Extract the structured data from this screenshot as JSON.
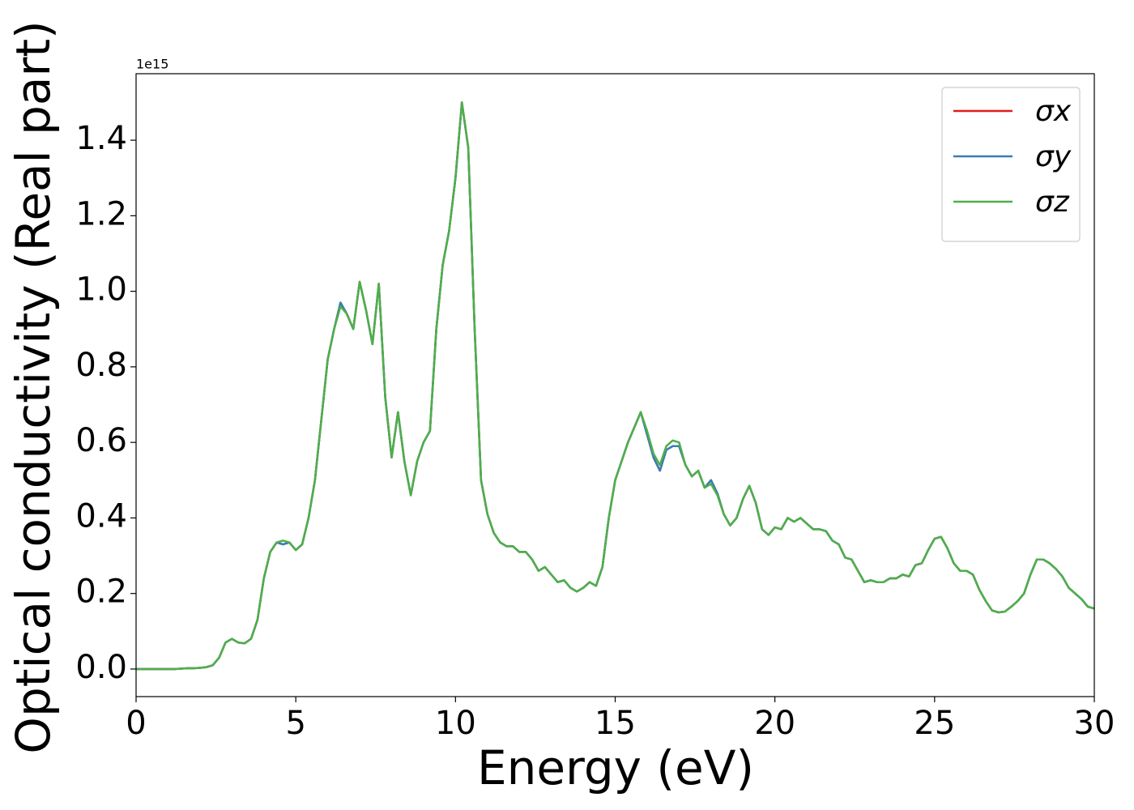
{
  "chart_data": {
    "type": "line",
    "x_label": "Energy (eV)",
    "y_label": "Optical conductivity (Real part)",
    "y_offset_label": "1e15",
    "xlim": [
      0,
      30
    ],
    "xticks": [
      0,
      5,
      10,
      15,
      20,
      25,
      30
    ],
    "ylim": [
      -0.073,
      1.576
    ],
    "yticks": [
      {
        "value": 0,
        "label": "0.0"
      },
      0.2,
      0.4,
      0.6,
      0.8,
      {
        "value": 1,
        "label": "1.0"
      },
      1.2,
      1.4
    ],
    "legend": "upper right",
    "x": [
      0,
      0.2,
      0.4,
      0.6,
      0.8,
      1,
      1.2,
      1.4,
      1.6,
      1.8,
      2,
      2.2,
      2.4,
      2.6,
      2.8,
      3,
      3.2,
      3.4,
      3.6,
      3.8,
      4,
      4.2,
      4.4,
      4.6,
      4.8,
      5,
      5.2,
      5.4,
      5.6,
      5.8,
      6,
      6.2,
      6.4,
      6.6,
      6.8,
      7,
      7.2,
      7.4,
      7.6,
      7.8,
      8,
      8.2,
      8.4,
      8.6,
      8.8,
      9,
      9.2,
      9.4,
      9.6,
      9.8,
      10,
      10.2,
      10.4,
      10.6,
      10.8,
      11,
      11.2,
      11.4,
      11.6,
      11.8,
      12,
      12.2,
      12.4,
      12.6,
      12.8,
      13,
      13.2,
      13.4,
      13.6,
      13.8,
      14,
      14.2,
      14.4,
      14.6,
      14.8,
      15,
      15.2,
      15.4,
      15.6,
      15.8,
      16,
      16.2,
      16.4,
      16.6,
      16.8,
      17,
      17.2,
      17.4,
      17.6,
      17.8,
      18,
      18.2,
      18.4,
      18.6,
      18.8,
      19,
      19.2,
      19.4,
      19.6,
      19.8,
      20,
      20.2,
      20.4,
      20.6,
      20.8,
      21,
      21.2,
      21.4,
      21.6,
      21.8,
      22,
      22.2,
      22.4,
      22.6,
      22.8,
      23,
      23.2,
      23.4,
      23.6,
      23.8,
      24,
      24.2,
      24.4,
      24.6,
      24.8,
      25,
      25.2,
      25.4,
      25.6,
      25.8,
      26,
      26.2,
      26.4,
      26.6,
      26.8,
      27,
      27.2,
      27.4,
      27.6,
      27.8,
      28,
      28.2,
      28.4,
      28.6,
      28.8,
      29,
      29.2,
      29.4,
      29.6,
      29.8,
      30
    ],
    "series": [
      {
        "name": "σx",
        "color": "#e41a1c",
        "values": [
          0,
          0,
          0,
          0,
          0,
          0,
          0,
          0.001,
          0.002,
          0.002,
          0.003,
          0.005,
          0.01,
          0.03,
          0.07,
          0.08,
          0.07,
          0.068,
          0.08,
          0.13,
          0.24,
          0.31,
          0.335,
          0.33,
          0.335,
          0.315,
          0.33,
          0.4,
          0.5,
          0.66,
          0.82,
          0.9,
          0.97,
          0.94,
          0.9,
          1.025,
          0.95,
          0.86,
          1.02,
          0.72,
          0.56,
          0.68,
          0.55,
          0.46,
          0.55,
          0.6,
          0.63,
          0.9,
          1.07,
          1.16,
          1.3,
          1.5,
          1.38,
          0.9,
          0.5,
          0.41,
          0.36,
          0.335,
          0.325,
          0.325,
          0.31,
          0.31,
          0.29,
          0.26,
          0.27,
          0.25,
          0.23,
          0.235,
          0.215,
          0.205,
          0.215,
          0.23,
          0.22,
          0.27,
          0.4,
          0.5,
          0.55,
          0.6,
          0.64,
          0.68,
          0.62,
          0.56,
          0.525,
          0.58,
          0.59,
          0.59,
          0.54,
          0.51,
          0.525,
          0.48,
          0.5,
          0.465,
          0.41,
          0.38,
          0.4,
          0.45,
          0.485,
          0.44,
          0.37,
          0.355,
          0.375,
          0.37,
          0.4,
          0.39,
          0.4,
          0.385,
          0.37,
          0.37,
          0.365,
          0.34,
          0.33,
          0.295,
          0.29,
          0.26,
          0.23,
          0.235,
          0.23,
          0.23,
          0.24,
          0.24,
          0.25,
          0.245,
          0.275,
          0.28,
          0.315,
          0.345,
          0.35,
          0.32,
          0.28,
          0.26,
          0.26,
          0.25,
          0.21,
          0.18,
          0.155,
          0.15,
          0.152,
          0.165,
          0.18,
          0.2,
          0.25,
          0.29,
          0.29,
          0.28,
          0.265,
          0.245,
          0.215,
          0.2,
          0.185,
          0.165,
          0.16
        ]
      },
      {
        "name": "σy",
        "color": "#377eb8",
        "values": [
          0,
          0,
          0,
          0,
          0,
          0,
          0,
          0.001,
          0.002,
          0.002,
          0.003,
          0.005,
          0.01,
          0.03,
          0.07,
          0.08,
          0.07,
          0.068,
          0.08,
          0.13,
          0.24,
          0.31,
          0.335,
          0.33,
          0.335,
          0.315,
          0.33,
          0.4,
          0.5,
          0.66,
          0.82,
          0.9,
          0.97,
          0.94,
          0.9,
          1.025,
          0.95,
          0.86,
          1.02,
          0.72,
          0.56,
          0.68,
          0.55,
          0.46,
          0.55,
          0.6,
          0.63,
          0.9,
          1.07,
          1.16,
          1.3,
          1.5,
          1.38,
          0.9,
          0.5,
          0.41,
          0.36,
          0.335,
          0.325,
          0.325,
          0.31,
          0.31,
          0.29,
          0.26,
          0.27,
          0.25,
          0.23,
          0.235,
          0.215,
          0.205,
          0.215,
          0.23,
          0.22,
          0.27,
          0.4,
          0.5,
          0.55,
          0.6,
          0.64,
          0.68,
          0.62,
          0.56,
          0.525,
          0.58,
          0.59,
          0.59,
          0.54,
          0.51,
          0.525,
          0.48,
          0.5,
          0.465,
          0.41,
          0.38,
          0.4,
          0.45,
          0.485,
          0.44,
          0.37,
          0.355,
          0.375,
          0.37,
          0.4,
          0.39,
          0.4,
          0.385,
          0.37,
          0.37,
          0.365,
          0.34,
          0.33,
          0.295,
          0.29,
          0.26,
          0.23,
          0.235,
          0.23,
          0.23,
          0.24,
          0.24,
          0.25,
          0.245,
          0.275,
          0.28,
          0.315,
          0.345,
          0.35,
          0.32,
          0.28,
          0.26,
          0.26,
          0.25,
          0.21,
          0.18,
          0.155,
          0.15,
          0.152,
          0.165,
          0.18,
          0.2,
          0.25,
          0.29,
          0.29,
          0.28,
          0.265,
          0.245,
          0.215,
          0.2,
          0.185,
          0.165,
          0.16
        ]
      },
      {
        "name": "σz",
        "color": "#4daf4a",
        "values": [
          0,
          0,
          0,
          0,
          0,
          0,
          0,
          0.001,
          0.002,
          0.002,
          0.003,
          0.005,
          0.01,
          0.03,
          0.07,
          0.08,
          0.07,
          0.068,
          0.08,
          0.13,
          0.24,
          0.31,
          0.335,
          0.34,
          0.335,
          0.315,
          0.33,
          0.4,
          0.5,
          0.66,
          0.82,
          0.9,
          0.96,
          0.94,
          0.9,
          1.025,
          0.95,
          0.86,
          1.02,
          0.72,
          0.56,
          0.68,
          0.55,
          0.46,
          0.55,
          0.6,
          0.63,
          0.9,
          1.07,
          1.16,
          1.3,
          1.5,
          1.38,
          0.9,
          0.5,
          0.41,
          0.36,
          0.335,
          0.325,
          0.325,
          0.31,
          0.31,
          0.29,
          0.26,
          0.27,
          0.25,
          0.23,
          0.235,
          0.215,
          0.205,
          0.215,
          0.23,
          0.22,
          0.27,
          0.4,
          0.5,
          0.55,
          0.6,
          0.64,
          0.68,
          0.63,
          0.57,
          0.54,
          0.59,
          0.605,
          0.6,
          0.54,
          0.51,
          0.525,
          0.48,
          0.49,
          0.46,
          0.41,
          0.38,
          0.4,
          0.45,
          0.485,
          0.44,
          0.37,
          0.355,
          0.375,
          0.37,
          0.4,
          0.39,
          0.4,
          0.385,
          0.37,
          0.37,
          0.365,
          0.34,
          0.33,
          0.295,
          0.29,
          0.26,
          0.23,
          0.235,
          0.23,
          0.23,
          0.24,
          0.24,
          0.25,
          0.245,
          0.275,
          0.28,
          0.315,
          0.345,
          0.35,
          0.32,
          0.28,
          0.26,
          0.26,
          0.25,
          0.21,
          0.18,
          0.155,
          0.15,
          0.152,
          0.165,
          0.18,
          0.2,
          0.25,
          0.29,
          0.29,
          0.28,
          0.265,
          0.245,
          0.215,
          0.2,
          0.185,
          0.165,
          0.16
        ]
      }
    ]
  }
}
